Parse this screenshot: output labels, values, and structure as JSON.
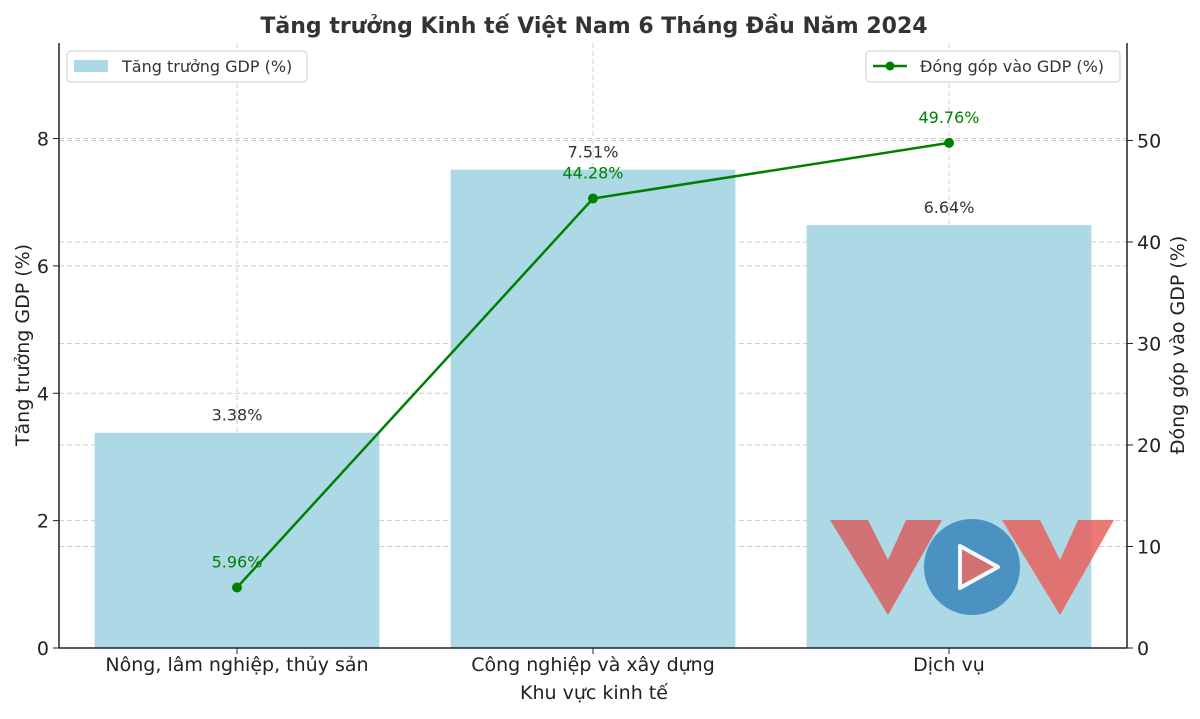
{
  "chart_data": {
    "type": "bar+line",
    "title": "Tăng trưởng Kinh tế Việt Nam 6 Tháng Đầu Năm 2024",
    "xlabel": "Khu vực kinh tế",
    "ylabel_left": "Tăng trưởng GDP (%)",
    "ylabel_right": "Đóng góp vào GDP (%)",
    "categories": [
      "Nông, lâm nghiệp, thủy sản",
      "Công nghiệp và xây dựng",
      "Dịch vụ"
    ],
    "series": [
      {
        "name": "Tăng trưởng GDP (%)",
        "type": "bar",
        "axis": "left",
        "values": [
          3.38,
          7.51,
          6.64
        ],
        "labels": [
          "3.38%",
          "7.51%",
          "6.64%"
        ],
        "color": "#ADD8E6"
      },
      {
        "name": "Đóng góp vào GDP (%)",
        "type": "line",
        "axis": "right",
        "values": [
          5.96,
          44.28,
          49.76
        ],
        "labels": [
          "5.96%",
          "44.28%",
          "49.76%"
        ],
        "color": "#008000"
      }
    ],
    "ylim_left": [
      0,
      9.5
    ],
    "ylim_right": [
      0,
      59.6
    ],
    "yticks_left": [
      0,
      2,
      4,
      6,
      8
    ],
    "yticks_right": [
      0,
      10,
      20,
      30,
      40,
      50
    ],
    "grid": true,
    "legend_left": "top-left",
    "legend_right": "top-right"
  },
  "watermark": {
    "text": "VOV",
    "colors": {
      "letters": "#D9605F",
      "circle": "#3A86BE"
    }
  }
}
